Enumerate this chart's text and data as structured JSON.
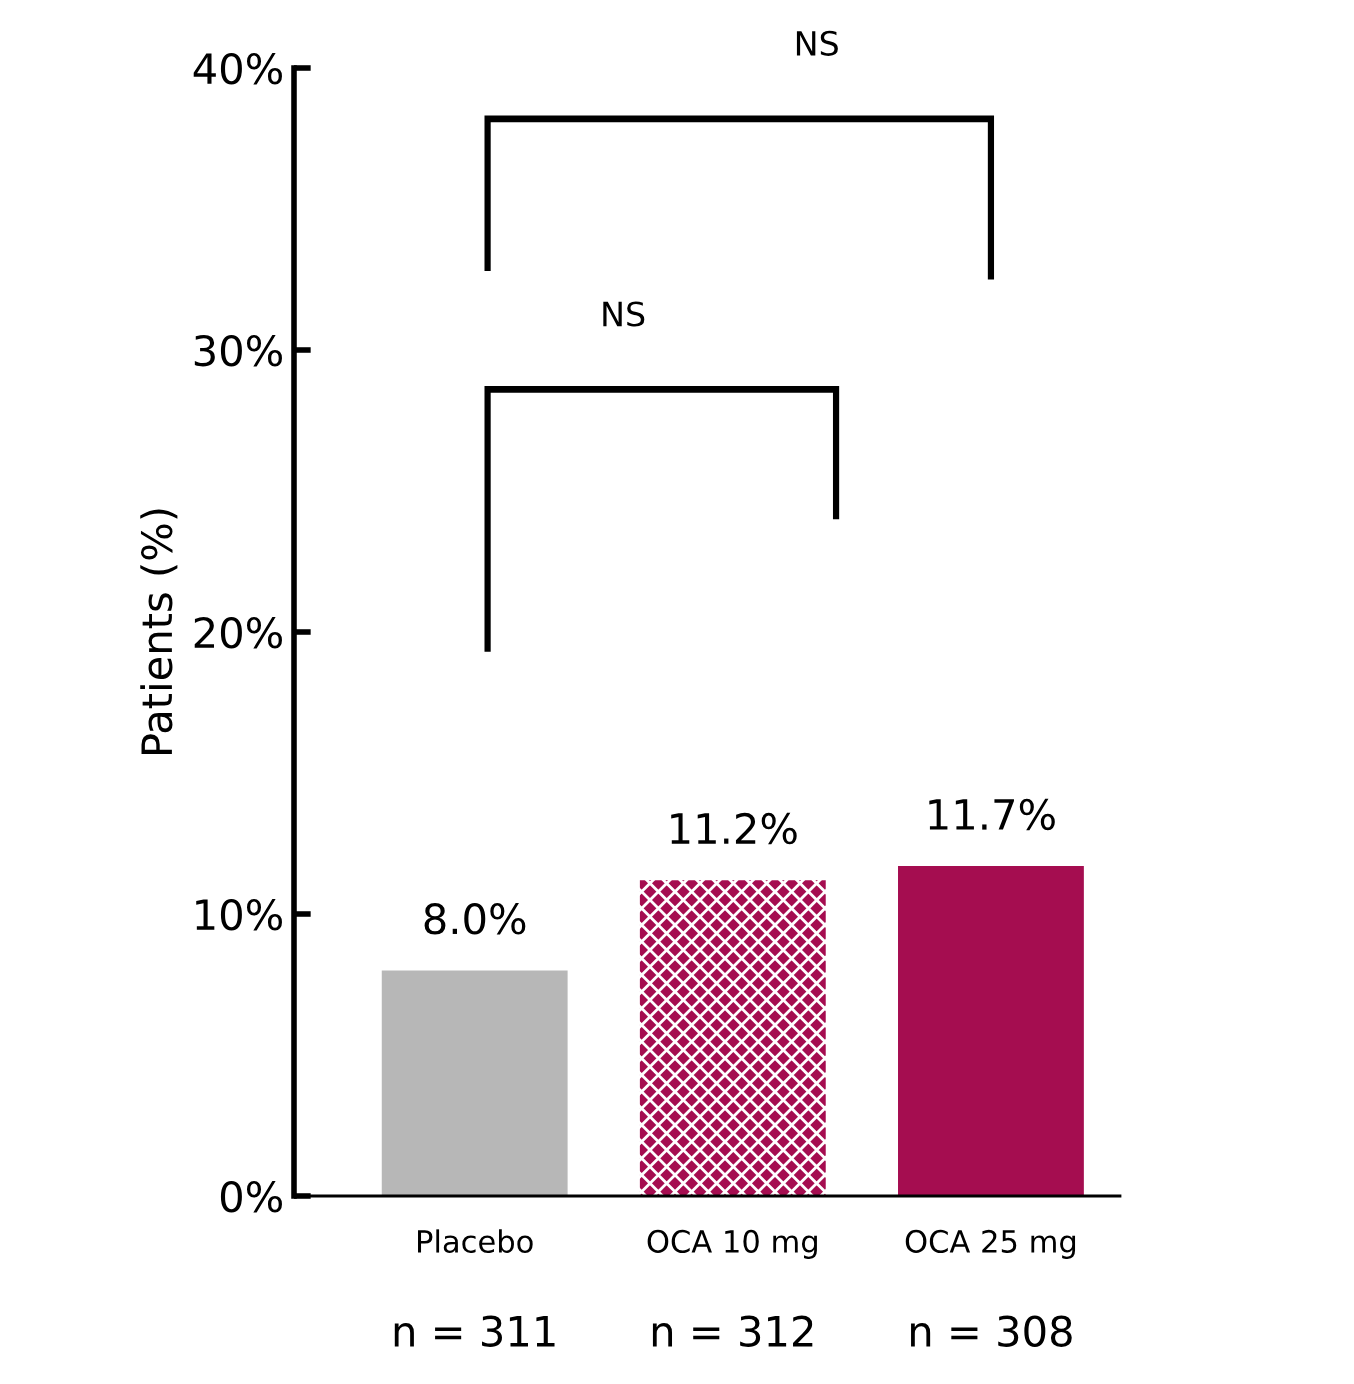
{
  "chart_data": {
    "type": "bar",
    "ylabel": "Patients (%)",
    "categories": [
      "Placebo",
      "OCA 10 mg",
      "OCA 25 mg"
    ],
    "values": [
      8.0,
      11.2,
      11.7
    ],
    "colors": [
      "#b7b7b7",
      "#a50d50",
      "#a50d50"
    ],
    "value_labels": [
      "8.0%",
      "11.2%",
      "11.7%"
    ],
    "ylim": [
      0,
      40
    ],
    "yticks": [
      {
        "value": 0,
        "label": "0%"
      },
      {
        "value": 10,
        "label": "10%"
      },
      {
        "value": 20,
        "label": "20%"
      },
      {
        "value": 30,
        "label": "30%"
      },
      {
        "value": 40,
        "label": "40%"
      }
    ],
    "grid": false,
    "annotations": [
      "NS",
      "NS",
      "n = 311",
      "n = 312",
      "n = 308"
    ]
  }
}
